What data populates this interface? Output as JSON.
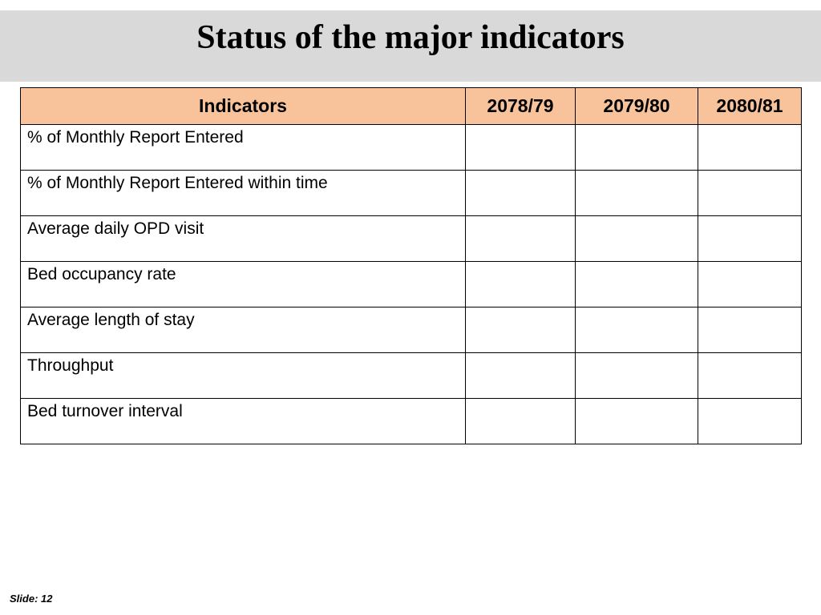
{
  "slide": {
    "title": "Status of the major indicators",
    "slide_number_label": "Slide: 12"
  },
  "table": {
    "headers": [
      "Indicators",
      "2078/79",
      "2079/80",
      "2080/81"
    ],
    "rows": [
      {
        "indicator": "% of Monthly Report Entered",
        "values": [
          "",
          "",
          ""
        ]
      },
      {
        "indicator": "% of Monthly Report Entered within time",
        "values": [
          "",
          "",
          ""
        ]
      },
      {
        "indicator": "Average daily OPD visit",
        "values": [
          "",
          "",
          ""
        ]
      },
      {
        "indicator": "Bed occupancy rate",
        "values": [
          "",
          "",
          ""
        ]
      },
      {
        "indicator": "Average length of stay",
        "values": [
          "",
          "",
          ""
        ]
      },
      {
        "indicator": "Throughput",
        "values": [
          "",
          "",
          ""
        ]
      },
      {
        "indicator": "Bed turnover interval",
        "values": [
          "",
          "",
          ""
        ]
      }
    ]
  },
  "colors": {
    "header_fill": "#f8c39a",
    "title_bar": "#d9d9d9",
    "border": "#000000"
  }
}
